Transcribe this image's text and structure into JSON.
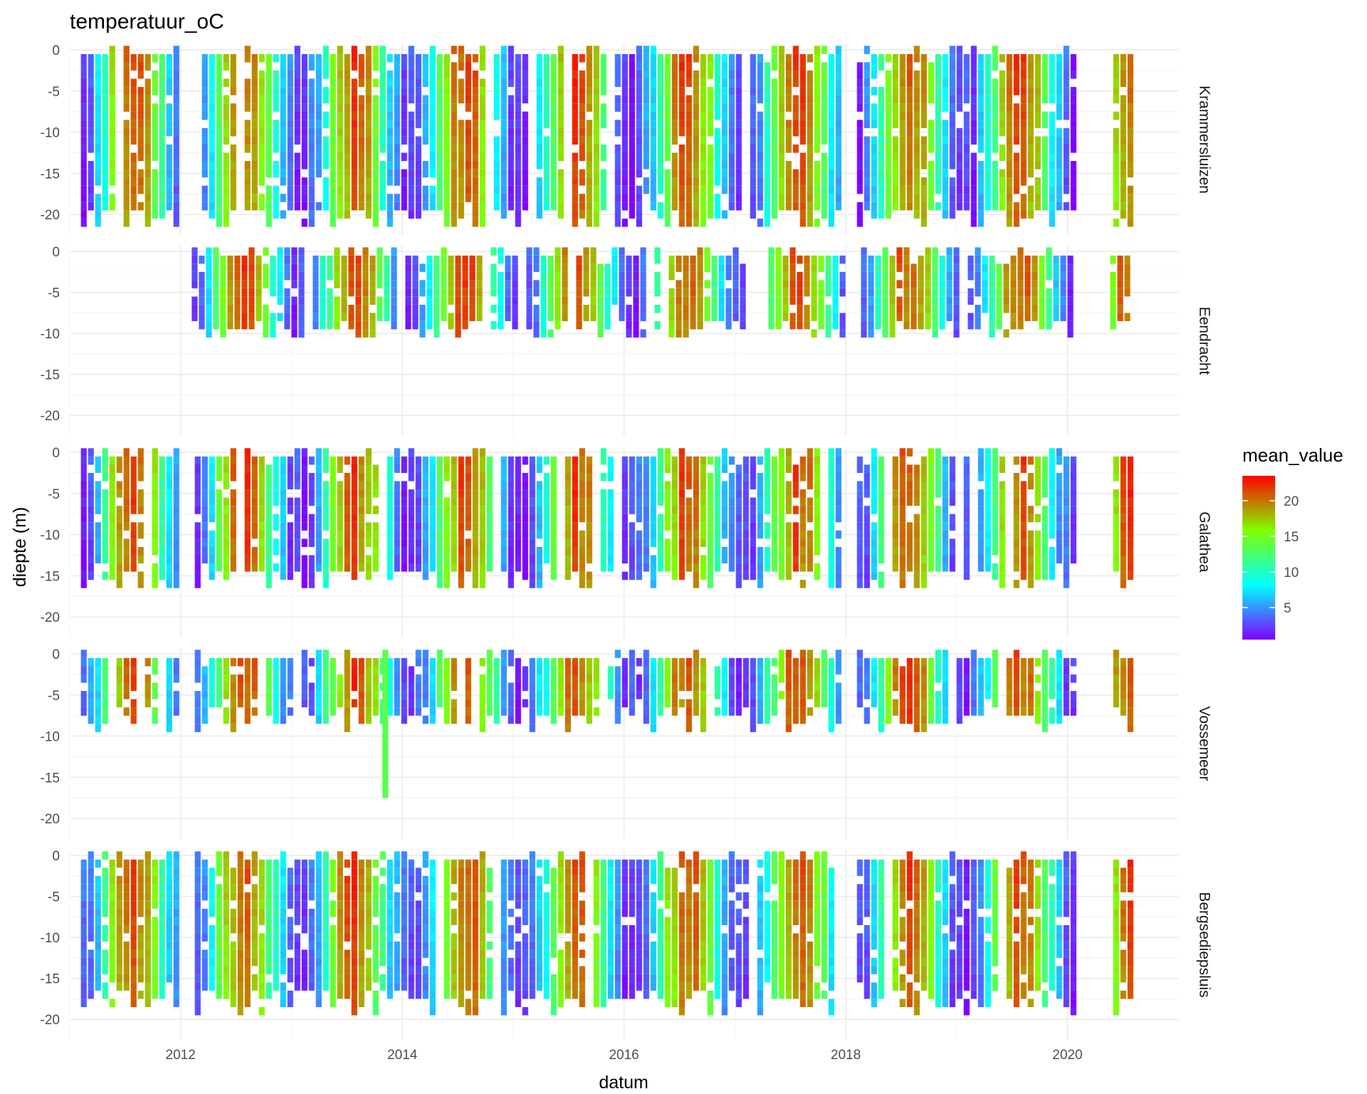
{
  "chart_data": {
    "type": "heatmap",
    "title": "temperatuur_oC",
    "xlabel": "datum",
    "ylabel": "diepte (m)",
    "x_ticks": [
      "2012",
      "2014",
      "2016",
      "2018",
      "2020"
    ],
    "xlim": [
      2011.0,
      2021.0
    ],
    "y_ticks": [
      0,
      -5,
      -10,
      -15,
      -20
    ],
    "ylim": [
      -22.5,
      0.7
    ],
    "x_start_year": 2011.1,
    "x_end_year": 2020.55,
    "grid": true,
    "facets": [
      {
        "name": "Krammersluizen",
        "max_depth": 20.5,
        "x_start": 2011.1,
        "gaps": [
          [
            2011.95,
            2012.15
          ],
          [
            2017.95,
            2018.05
          ],
          [
            2020.05,
            2020.35
          ]
        ]
      },
      {
        "name": "Eendracht",
        "max_depth": 9.5,
        "x_start": 2012.1,
        "gaps": [
          [
            2017.05,
            2017.3
          ],
          [
            2017.95,
            2018.1
          ],
          [
            2020.05,
            2020.35
          ]
        ]
      },
      {
        "name": "Galathea",
        "max_depth": 15.5,
        "x_start": 2011.1,
        "gaps": [
          [
            2011.95,
            2012.1
          ],
          [
            2017.95,
            2018.05
          ],
          [
            2020.05,
            2020.35
          ]
        ]
      },
      {
        "name": "Vossemeer",
        "max_depth": 8.0,
        "x_start": 2011.1,
        "gaps": [
          [
            2011.95,
            2012.1
          ],
          [
            2017.95,
            2018.05
          ],
          [
            2020.05,
            2020.35
          ]
        ],
        "spike": {
          "x": 2013.82,
          "depth": 17.0
        }
      },
      {
        "name": "Bergsediepsluis",
        "max_depth": 18.0,
        "x_start": 2011.1,
        "gaps": [
          [
            2011.95,
            2012.1
          ],
          [
            2017.95,
            2018.05
          ],
          [
            2020.05,
            2020.35
          ]
        ]
      }
    ],
    "legend": {
      "title": "mean_value",
      "ticks": [
        20,
        15,
        10,
        5
      ],
      "range": [
        0.5,
        23.5
      ],
      "placement": "right"
    },
    "color_scale": [
      "#8000ff",
      "#00ffff",
      "#80ff00",
      "#ff0000"
    ]
  }
}
